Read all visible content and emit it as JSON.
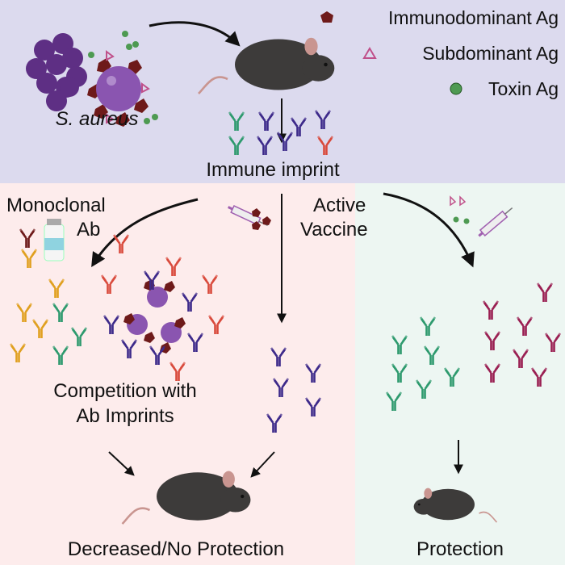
{
  "legend": {
    "items": [
      {
        "label": "Immunodominant Ag",
        "icon": "pentagon-icon",
        "color": "#6e1a1a"
      },
      {
        "label": "Subdominant Ag",
        "icon": "triangle-icon",
        "color": "#c0508a"
      },
      {
        "label": "Toxin Ag",
        "icon": "circle-icon",
        "color": "#4e9a52"
      }
    ]
  },
  "labels": {
    "pathogen": "S. aureus",
    "imprint": "Immune imprint",
    "monoclonal_line1": "Monoclonal",
    "monoclonal_line2": "Ab",
    "vaccine_line1": "Active",
    "vaccine_line2": "Vaccine",
    "competition_line1": "Competition with",
    "competition_line2": "Ab Imprints",
    "bad_outcome": "Decreased/No Protection",
    "good_outcome": "Protection"
  },
  "colors": {
    "top_panel": "#dcdaee",
    "left_panel": "#fdecec",
    "right_panel": "#edf6f2",
    "staph": "#6b3b8e",
    "mouse": "#3d3b3a",
    "ab_green": "#2e9a6e",
    "ab_purple": "#3d2a8a",
    "ab_red": "#d94a3c",
    "ab_orange": "#e0a020",
    "ab_magenta": "#9a1f52"
  }
}
